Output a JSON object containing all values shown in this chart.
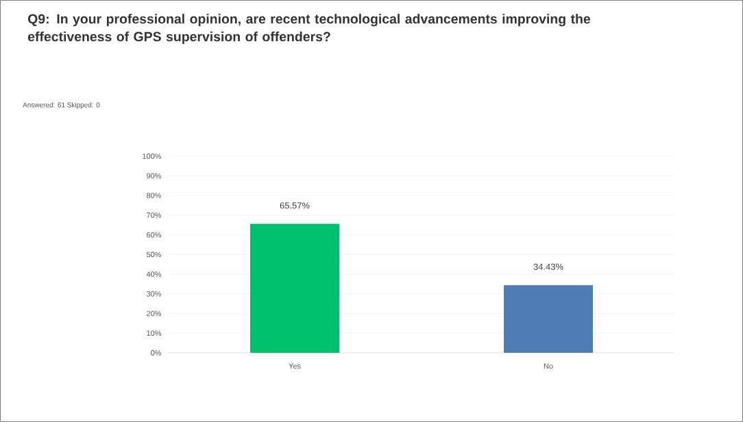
{
  "chart_data": {
    "type": "bar",
    "title": "Q9: In your professional opinion, are recent technological advancements improving the effectiveness of GPS supervision of offenders?",
    "subtitle": "Answered: 61    Skipped: 0",
    "categories": [
      "Yes",
      "No"
    ],
    "values": [
      65.57,
      34.43
    ],
    "colors": [
      "#00bf6f",
      "#507cb6"
    ],
    "value_labels": [
      "65.57%",
      "34.43%"
    ],
    "ylim": [
      0,
      100
    ],
    "yticks": [
      {
        "value": 0,
        "label": "0%"
      },
      {
        "value": 10,
        "label": "10%"
      },
      {
        "value": 20,
        "label": "20%"
      },
      {
        "value": 30,
        "label": "30%"
      },
      {
        "value": 40,
        "label": "40%"
      },
      {
        "value": 50,
        "label": "50%"
      },
      {
        "value": 60,
        "label": "60%"
      },
      {
        "value": 70,
        "label": "70%"
      },
      {
        "value": 80,
        "label": "80%"
      },
      {
        "value": 90,
        "label": "90%"
      },
      {
        "value": 100,
        "label": "100%"
      }
    ],
    "grid": "y"
  }
}
